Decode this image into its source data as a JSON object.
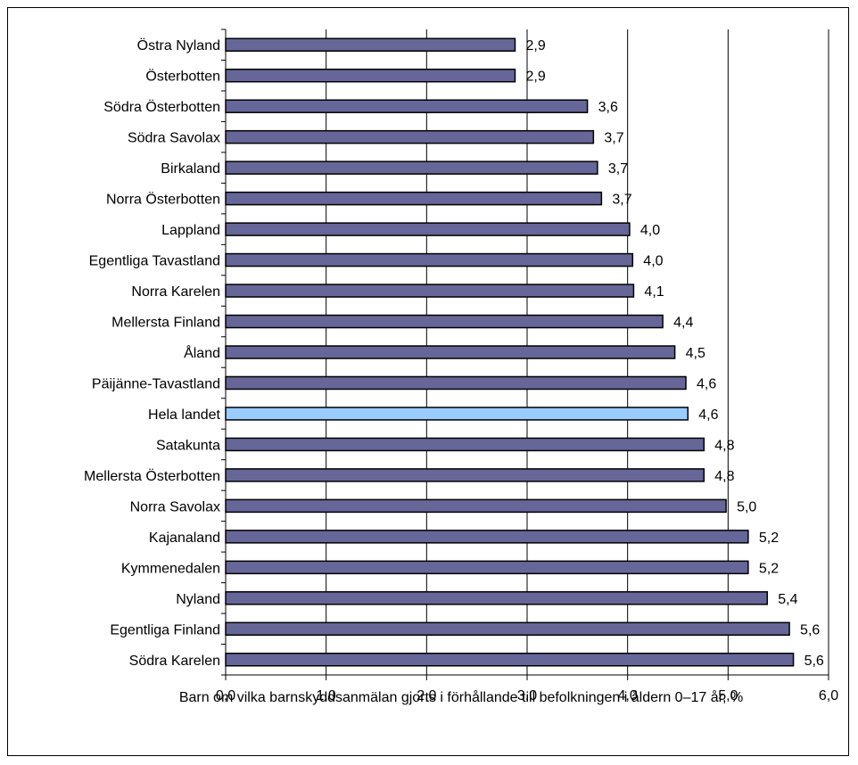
{
  "chart_data": {
    "type": "bar",
    "orientation": "horizontal",
    "categories": [
      "Östra Nyland",
      "Österbotten",
      "Södra Österbotten",
      "Södra Savolax",
      "Birkaland",
      "Norra Österbotten",
      "Lappland",
      "Egentliga Tavastland",
      "Norra Karelen",
      "Mellersta Finland",
      "Åland",
      "Päijänne-Tavastland",
      "Hela landet",
      "Satakunta",
      "Mellersta Österbotten",
      "Norra Savolax",
      "Kajanaland",
      "Kymmenedalen",
      "Nyland",
      "Egentliga Finland",
      "Södra Karelen"
    ],
    "values": [
      2.88,
      2.88,
      3.6,
      3.66,
      3.7,
      3.74,
      4.02,
      4.05,
      4.06,
      4.35,
      4.47,
      4.58,
      4.6,
      4.76,
      4.76,
      4.98,
      5.2,
      5.2,
      5.39,
      5.61,
      5.65
    ],
    "data_labels": [
      "2,9",
      "2,9",
      "3,6",
      "3,7",
      "3,7",
      "3,7",
      "4,0",
      "4,0",
      "4,1",
      "4,4",
      "4,5",
      "4,6",
      "4,6",
      "4,8",
      "4,8",
      "5,0",
      "5,2",
      "5,2",
      "5,4",
      "5,6",
      "5,6"
    ],
    "highlight_category": "Hela landet",
    "xlabel": "Barn om vilka barnskyddsanmälan gjorts i förhållande till befolkningen i åldern 0–17 år, %",
    "ylabel": "",
    "xlim": [
      0,
      6
    ],
    "x_ticks": [
      0,
      1,
      2,
      3,
      4,
      5,
      6
    ],
    "x_tick_labels": [
      "0,0",
      "1,0",
      "2,0",
      "3,0",
      "4,0",
      "5,0",
      "6,0"
    ],
    "grid": "vertical",
    "legend": "none",
    "colors": {
      "bar": "#666699",
      "highlight": "#99ccff",
      "outline": "#000000",
      "grid": "#000000"
    }
  }
}
